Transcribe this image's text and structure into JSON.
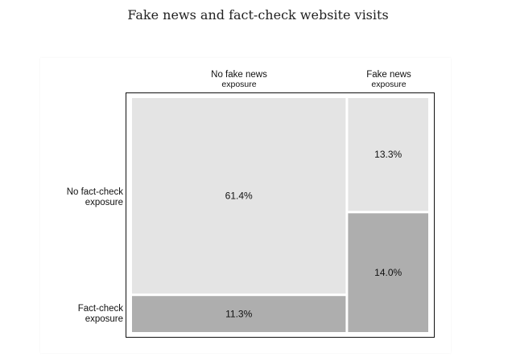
{
  "chart_data": {
    "type": "mosaic",
    "title": "Fake news and fact-check website visits",
    "columns": [
      {
        "label_line1": "No fake news",
        "label_line2": "exposure"
      },
      {
        "label_line1": "Fake news",
        "label_line2": "exposure"
      }
    ],
    "rows": [
      {
        "label_line1": "No fact-check",
        "label_line2": "exposure"
      },
      {
        "label_line1": "Fact-check",
        "label_line2": "exposure"
      }
    ],
    "cells": [
      {
        "column": "No fake news exposure",
        "row": "No fact-check exposure",
        "value": 61.4,
        "label": "61.4%"
      },
      {
        "column": "No fake news exposure",
        "row": "Fact-check exposure",
        "value": 11.3,
        "label": "11.3%"
      },
      {
        "column": "Fake news exposure",
        "row": "No fact-check exposure",
        "value": 13.3,
        "label": "13.3%"
      },
      {
        "column": "Fake news exposure",
        "row": "Fact-check exposure",
        "value": 14.0,
        "label": "14.0%"
      }
    ],
    "colors": {
      "No fact-check exposure": "#e4e4e4",
      "Fact-check exposure": "#aeaeae"
    }
  }
}
